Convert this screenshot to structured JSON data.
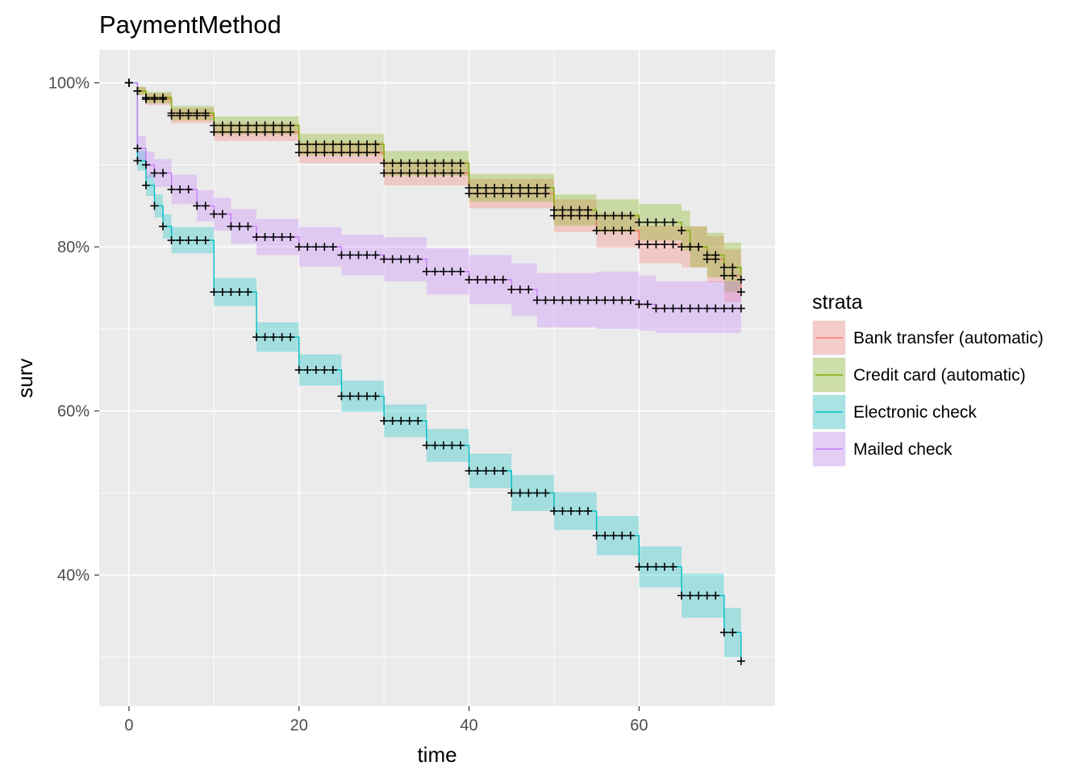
{
  "chart_data": {
    "type": "line",
    "title": "PaymentMethod",
    "xlabel": "time",
    "ylabel": "surv",
    "xlim": [
      -3.5,
      76
    ],
    "ylim": [
      0.24,
      1.04
    ],
    "x_ticks": [
      0,
      20,
      40,
      60
    ],
    "x_tick_labels": [
      "0",
      "20",
      "40",
      "60"
    ],
    "y_ticks": [
      0.4,
      0.6,
      0.8,
      1.0
    ],
    "y_tick_labels": [
      "40%",
      "60%",
      "80%",
      "100%"
    ],
    "grid": true,
    "legend": {
      "title": "strata",
      "position": "right"
    },
    "censor_marks": true,
    "series": [
      {
        "name": "Bank transfer (automatic)",
        "color": "#F8766D",
        "x": [
          0,
          1,
          2,
          5,
          10,
          20,
          30,
          40,
          50,
          55,
          60,
          65,
          68,
          70,
          72
        ],
        "y": [
          1.0,
          0.99,
          0.98,
          0.96,
          0.94,
          0.915,
          0.89,
          0.865,
          0.838,
          0.82,
          0.803,
          0.8,
          0.785,
          0.765,
          0.745
        ],
        "lower": [
          1.0,
          0.985,
          0.973,
          0.951,
          0.929,
          0.902,
          0.875,
          0.847,
          0.818,
          0.799,
          0.78,
          0.775,
          0.757,
          0.733,
          0.71
        ],
        "upper": [
          1.0,
          0.995,
          0.987,
          0.969,
          0.951,
          0.928,
          0.905,
          0.883,
          0.858,
          0.841,
          0.826,
          0.825,
          0.813,
          0.797,
          0.78
        ]
      },
      {
        "name": "Credit card (automatic)",
        "color": "#7CAE00",
        "x": [
          0,
          1,
          2,
          5,
          10,
          20,
          30,
          40,
          50,
          55,
          60,
          65,
          66,
          68,
          70,
          72
        ],
        "y": [
          1.0,
          0.99,
          0.982,
          0.963,
          0.948,
          0.925,
          0.902,
          0.872,
          0.845,
          0.838,
          0.83,
          0.82,
          0.8,
          0.79,
          0.775,
          0.76
        ],
        "lower": [
          1.0,
          0.985,
          0.975,
          0.954,
          0.937,
          0.912,
          0.887,
          0.855,
          0.826,
          0.818,
          0.808,
          0.796,
          0.775,
          0.763,
          0.745,
          0.728
        ],
        "upper": [
          1.0,
          0.995,
          0.989,
          0.972,
          0.959,
          0.938,
          0.917,
          0.889,
          0.864,
          0.858,
          0.852,
          0.844,
          0.825,
          0.817,
          0.805,
          0.792
        ]
      },
      {
        "name": "Electronic check",
        "color": "#00BFC4",
        "x": [
          0,
          1,
          2,
          3,
          4,
          5,
          10,
          15,
          20,
          25,
          30,
          35,
          40,
          45,
          50,
          55,
          60,
          65,
          70,
          72
        ],
        "y": [
          1.0,
          0.905,
          0.875,
          0.85,
          0.825,
          0.808,
          0.745,
          0.69,
          0.65,
          0.618,
          0.588,
          0.558,
          0.527,
          0.5,
          0.478,
          0.448,
          0.41,
          0.375,
          0.33,
          0.295
        ],
        "lower": [
          1.0,
          0.893,
          0.862,
          0.836,
          0.81,
          0.792,
          0.728,
          0.672,
          0.631,
          0.599,
          0.568,
          0.538,
          0.506,
          0.478,
          0.455,
          0.424,
          0.385,
          0.348,
          0.3,
          0.285
        ],
        "upper": [
          1.0,
          0.917,
          0.888,
          0.864,
          0.84,
          0.824,
          0.762,
          0.708,
          0.669,
          0.637,
          0.608,
          0.578,
          0.548,
          0.522,
          0.501,
          0.472,
          0.435,
          0.402,
          0.36,
          0.355
        ]
      },
      {
        "name": "Mailed check",
        "color": "#C77CFF",
        "x": [
          0,
          1,
          2,
          3,
          5,
          8,
          10,
          12,
          15,
          20,
          25,
          30,
          35,
          40,
          45,
          48,
          55,
          60,
          62,
          72
        ],
        "y": [
          1.0,
          0.92,
          0.9,
          0.89,
          0.87,
          0.85,
          0.84,
          0.825,
          0.812,
          0.8,
          0.79,
          0.785,
          0.77,
          0.76,
          0.748,
          0.735,
          0.735,
          0.73,
          0.725,
          0.725
        ],
        "lower": [
          1.0,
          0.905,
          0.884,
          0.873,
          0.852,
          0.831,
          0.82,
          0.804,
          0.79,
          0.776,
          0.765,
          0.758,
          0.742,
          0.73,
          0.716,
          0.702,
          0.7,
          0.698,
          0.695,
          0.695
        ],
        "upper": [
          1.0,
          0.935,
          0.916,
          0.907,
          0.888,
          0.869,
          0.86,
          0.846,
          0.834,
          0.824,
          0.815,
          0.812,
          0.798,
          0.79,
          0.78,
          0.768,
          0.77,
          0.765,
          0.758,
          0.758
        ]
      }
    ]
  }
}
